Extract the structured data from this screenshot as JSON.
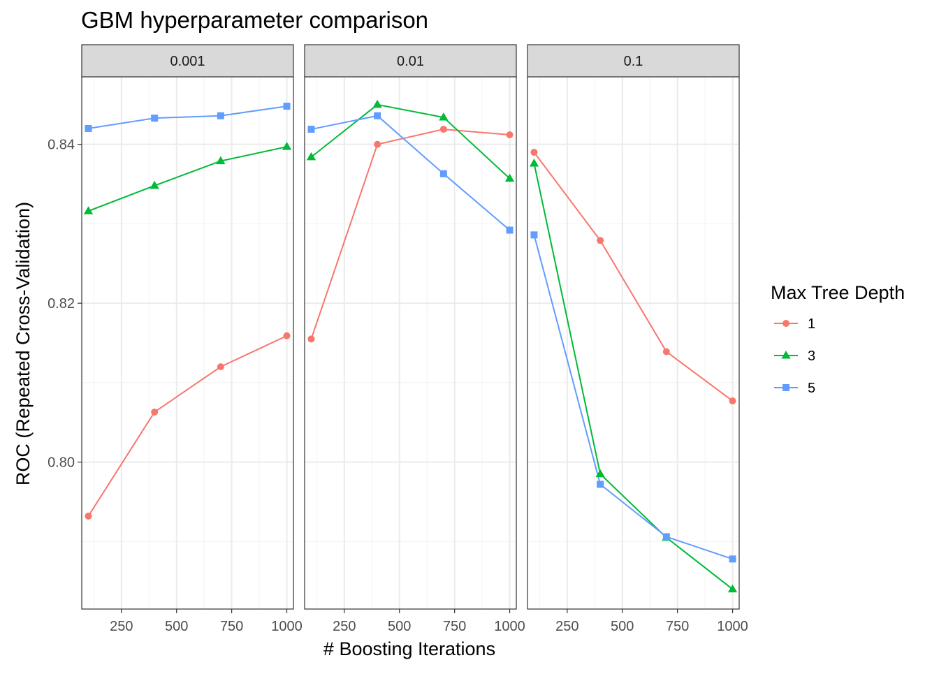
{
  "chart_data": {
    "type": "line",
    "title": "GBM hyperparameter comparison",
    "xlabel": "# Boosting Iterations",
    "ylabel": "ROC (Repeated Cross-Validation)",
    "xlim": [
      70,
      1030
    ],
    "ylim": [
      0.7815,
      0.8485
    ],
    "x_ticks": [
      250,
      500,
      750,
      1000
    ],
    "y_ticks": [
      0.8,
      0.82,
      0.84
    ],
    "y_tick_labels": [
      "0.80",
      "0.82",
      "0.84"
    ],
    "x": [
      100,
      400,
      700,
      1000
    ],
    "grid": true,
    "legend": {
      "title": "Max Tree Depth",
      "placement": "right",
      "entries": [
        "1",
        "3",
        "5"
      ]
    },
    "series_styles": [
      {
        "key": "1",
        "color": "#F8766D",
        "marker": "circle"
      },
      {
        "key": "3",
        "color": "#00BA38",
        "marker": "triangle"
      },
      {
        "key": "5",
        "color": "#619CFF",
        "marker": "square"
      }
    ],
    "panels": [
      {
        "label": "0.001",
        "series": [
          {
            "key": "1",
            "values": [
              0.7932,
              0.8063,
              0.812,
              0.8159
            ]
          },
          {
            "key": "3",
            "values": [
              0.8316,
              0.8348,
              0.8379,
              0.8397
            ]
          },
          {
            "key": "5",
            "values": [
              0.842,
              0.8433,
              0.8436,
              0.8448
            ]
          }
        ]
      },
      {
        "label": "0.01",
        "series": [
          {
            "key": "1",
            "values": [
              0.8155,
              0.84,
              0.8419,
              0.8412
            ]
          },
          {
            "key": "3",
            "values": [
              0.8384,
              0.845,
              0.8434,
              0.8357
            ]
          },
          {
            "key": "5",
            "values": [
              0.8419,
              0.8436,
              0.8363,
              0.8292
            ]
          }
        ]
      },
      {
        "label": "0.1",
        "series": [
          {
            "key": "1",
            "values": [
              0.839,
              0.8279,
              0.8139,
              0.8077
            ]
          },
          {
            "key": "3",
            "values": [
              0.8376,
              0.7985,
              0.7905,
              0.784
            ]
          },
          {
            "key": "5",
            "values": [
              0.8286,
              0.7972,
              0.7906,
              0.7878
            ]
          }
        ]
      }
    ]
  }
}
